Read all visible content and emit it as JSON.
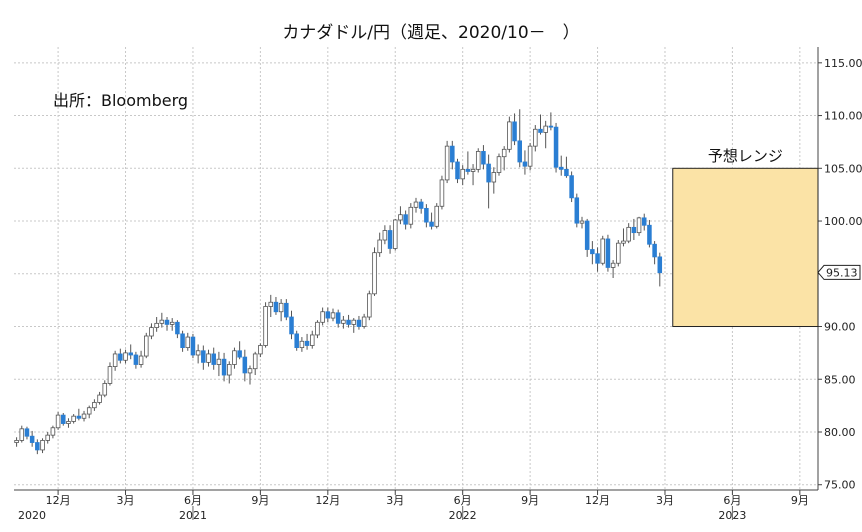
{
  "chart_data": {
    "type": "candlestick",
    "title": "カナダドル/円（週足、2020/10－　）",
    "source": "出所：Bloomberg",
    "y_axis": {
      "side": "right",
      "ylim": [
        74.5,
        116.5
      ],
      "ticks": [
        "115.00",
        "110.00",
        "105.00",
        "100.00",
        "95.00",
        "90.00",
        "85.00",
        "80.00",
        "75.00"
      ]
    },
    "x_axis": {
      "month_ticks": [
        {
          "label": "12月",
          "week": 8
        },
        {
          "label": "3月",
          "week": 21
        },
        {
          "label": "6月",
          "week": 34
        },
        {
          "label": "9月",
          "week": 47
        },
        {
          "label": "12月",
          "week": 60
        },
        {
          "label": "3月",
          "week": 73
        },
        {
          "label": "6月",
          "week": 86
        },
        {
          "label": "9月",
          "week": 99
        },
        {
          "label": "12月",
          "week": 112
        },
        {
          "label": "3月",
          "week": 125
        },
        {
          "label": "6月",
          "week": 138
        },
        {
          "label": "9月",
          "week": 151
        }
      ],
      "year_labels": [
        {
          "label": "2020",
          "week": 0
        },
        {
          "label": "2021",
          "week": 34
        },
        {
          "label": "2022",
          "week": 86
        },
        {
          "label": "2023",
          "week": 138
        }
      ]
    },
    "last_price": {
      "value": 95.13,
      "label": "95.13"
    },
    "forecast_range": {
      "label": "予想レンジ",
      "low": 90.0,
      "high": 105.0,
      "start_week": 127,
      "end_week": 155
    },
    "colors": {
      "up": "#ffffff",
      "down": "#2a7ed3",
      "wick": "#555555",
      "range_fill": "#fbe3a6",
      "range_border": "#222222"
    },
    "candles": [
      [
        79.0,
        79.5,
        78.6,
        79.2
      ],
      [
        79.2,
        80.6,
        79.0,
        80.3
      ],
      [
        80.3,
        80.5,
        79.3,
        79.6
      ],
      [
        79.6,
        80.1,
        78.6,
        79.0
      ],
      [
        79.0,
        79.3,
        77.9,
        78.3
      ],
      [
        78.3,
        79.4,
        78.0,
        79.2
      ],
      [
        79.2,
        80.0,
        78.9,
        79.7
      ],
      [
        79.7,
        80.6,
        79.4,
        80.4
      ],
      [
        80.4,
        81.9,
        80.2,
        81.6
      ],
      [
        81.6,
        81.8,
        80.6,
        80.8
      ],
      [
        80.8,
        81.3,
        80.4,
        81.0
      ],
      [
        81.0,
        81.7,
        80.8,
        81.5
      ],
      [
        81.5,
        82.2,
        81.1,
        81.3
      ],
      [
        81.3,
        82.0,
        81.0,
        81.7
      ],
      [
        81.7,
        82.5,
        81.3,
        82.3
      ],
      [
        82.3,
        83.1,
        82.0,
        82.8
      ],
      [
        82.8,
        83.8,
        82.6,
        83.5
      ],
      [
        83.5,
        84.9,
        83.3,
        84.6
      ],
      [
        84.6,
        86.6,
        84.4,
        86.2
      ],
      [
        86.2,
        87.7,
        85.8,
        87.4
      ],
      [
        87.4,
        87.9,
        86.5,
        86.8
      ],
      [
        86.8,
        87.8,
        86.5,
        87.5
      ],
      [
        87.5,
        88.3,
        86.9,
        87.3
      ],
      [
        87.3,
        87.6,
        86.0,
        86.4
      ],
      [
        86.4,
        87.7,
        86.1,
        87.2
      ],
      [
        87.2,
        89.4,
        87.0,
        89.1
      ],
      [
        89.1,
        90.3,
        88.8,
        89.9
      ],
      [
        89.9,
        90.9,
        89.5,
        90.3
      ],
      [
        90.3,
        91.3,
        89.9,
        90.6
      ],
      [
        90.6,
        90.9,
        89.6,
        90.2
      ],
      [
        90.2,
        90.8,
        89.6,
        90.4
      ],
      [
        90.4,
        90.6,
        88.9,
        89.3
      ],
      [
        89.3,
        89.6,
        87.6,
        88.0
      ],
      [
        88.0,
        89.4,
        87.7,
        89.0
      ],
      [
        89.0,
        89.3,
        87.0,
        87.3
      ],
      [
        87.3,
        88.3,
        86.5,
        87.7
      ],
      [
        87.7,
        88.2,
        85.9,
        86.6
      ],
      [
        86.6,
        87.8,
        86.2,
        87.4
      ],
      [
        87.4,
        88.0,
        85.9,
        86.4
      ],
      [
        86.4,
        87.6,
        85.3,
        86.9
      ],
      [
        86.9,
        87.5,
        84.8,
        85.4
      ],
      [
        85.4,
        86.7,
        84.6,
        86.4
      ],
      [
        86.4,
        88.0,
        86.0,
        87.7
      ],
      [
        87.7,
        88.6,
        86.9,
        87.1
      ],
      [
        87.1,
        87.8,
        84.8,
        85.6
      ],
      [
        85.6,
        86.3,
        84.5,
        86.0
      ],
      [
        86.0,
        87.6,
        85.4,
        87.4
      ],
      [
        87.4,
        88.4,
        87.1,
        88.2
      ],
      [
        88.2,
        92.3,
        88.0,
        91.9
      ],
      [
        91.9,
        93.0,
        90.9,
        92.3
      ],
      [
        92.3,
        92.8,
        91.1,
        91.4
      ],
      [
        91.4,
        92.6,
        90.5,
        92.2
      ],
      [
        92.2,
        92.6,
        90.6,
        90.9
      ],
      [
        90.9,
        91.5,
        88.8,
        89.3
      ],
      [
        89.3,
        89.6,
        87.7,
        88.0
      ],
      [
        88.0,
        89.0,
        87.6,
        88.6
      ],
      [
        88.6,
        89.3,
        87.8,
        88.2
      ],
      [
        88.2,
        89.6,
        87.9,
        89.2
      ],
      [
        89.2,
        90.6,
        88.9,
        90.4
      ],
      [
        90.4,
        91.8,
        90.1,
        91.4
      ],
      [
        91.4,
        91.8,
        90.4,
        90.8
      ],
      [
        90.8,
        91.7,
        90.5,
        91.3
      ],
      [
        91.3,
        91.6,
        89.9,
        90.3
      ],
      [
        90.3,
        91.0,
        89.8,
        90.6
      ],
      [
        90.6,
        91.1,
        89.9,
        90.2
      ],
      [
        90.2,
        90.8,
        89.4,
        90.6
      ],
      [
        90.6,
        91.0,
        89.7,
        90.0
      ],
      [
        90.0,
        91.2,
        89.8,
        90.9
      ],
      [
        90.9,
        93.4,
        90.6,
        93.1
      ],
      [
        93.1,
        97.5,
        92.9,
        97.0
      ],
      [
        97.0,
        98.9,
        96.6,
        98.2
      ],
      [
        98.2,
        99.6,
        97.8,
        99.1
      ],
      [
        99.1,
        99.6,
        96.9,
        97.4
      ],
      [
        97.4,
        100.2,
        97.2,
        100.1
      ],
      [
        100.1,
        101.4,
        99.7,
        100.6
      ],
      [
        100.6,
        101.0,
        99.2,
        99.7
      ],
      [
        99.7,
        101.7,
        99.3,
        101.3
      ],
      [
        101.3,
        102.2,
        100.8,
        101.8
      ],
      [
        101.8,
        102.1,
        100.7,
        101.2
      ],
      [
        101.2,
        101.6,
        99.4,
        99.9
      ],
      [
        99.9,
        100.8,
        99.2,
        99.5
      ],
      [
        99.5,
        101.7,
        99.3,
        101.4
      ],
      [
        101.4,
        104.3,
        101.1,
        103.9
      ],
      [
        103.9,
        107.6,
        103.6,
        107.1
      ],
      [
        107.1,
        107.6,
        104.9,
        105.6
      ],
      [
        105.6,
        105.9,
        103.6,
        104.0
      ],
      [
        104.0,
        105.3,
        103.4,
        104.9
      ],
      [
        104.9,
        106.6,
        104.4,
        104.7
      ],
      [
        104.7,
        105.4,
        103.4,
        104.9
      ],
      [
        104.9,
        106.9,
        104.6,
        106.6
      ],
      [
        106.6,
        107.2,
        104.9,
        105.4
      ],
      [
        105.4,
        106.3,
        101.2,
        103.7
      ],
      [
        103.7,
        105.1,
        102.6,
        104.6
      ],
      [
        104.6,
        106.4,
        104.3,
        106.1
      ],
      [
        106.1,
        107.1,
        104.8,
        106.8
      ],
      [
        106.8,
        109.9,
        106.5,
        109.4
      ],
      [
        109.4,
        110.2,
        107.2,
        107.6
      ],
      [
        107.6,
        110.6,
        105.1,
        105.6
      ],
      [
        105.6,
        106.7,
        104.4,
        105.2
      ],
      [
        105.2,
        107.4,
        104.8,
        107.1
      ],
      [
        107.1,
        109.1,
        106.6,
        108.7
      ],
      [
        108.7,
        110.1,
        108.2,
        108.4
      ],
      [
        108.4,
        109.5,
        106.9,
        109.0
      ],
      [
        109.0,
        110.3,
        108.6,
        108.9
      ],
      [
        108.9,
        109.3,
        104.6,
        105.1
      ],
      [
        105.1,
        106.2,
        104.3,
        104.9
      ],
      [
        104.9,
        106.1,
        104.1,
        104.3
      ],
      [
        104.3,
        104.7,
        101.8,
        102.2
      ],
      [
        102.2,
        102.6,
        99.4,
        99.8
      ],
      [
        99.8,
        100.4,
        99.3,
        100.0
      ],
      [
        100.0,
        100.2,
        96.6,
        97.3
      ],
      [
        97.3,
        98.1,
        95.9,
        96.9
      ],
      [
        96.9,
        97.5,
        95.2,
        96.0
      ],
      [
        96.0,
        98.6,
        95.8,
        98.3
      ],
      [
        98.3,
        98.7,
        95.2,
        95.6
      ],
      [
        95.6,
        96.3,
        94.6,
        96.0
      ],
      [
        96.0,
        98.2,
        95.7,
        97.9
      ],
      [
        97.9,
        99.3,
        97.6,
        98.1
      ],
      [
        98.1,
        99.8,
        97.9,
        99.4
      ],
      [
        99.4,
        100.2,
        98.2,
        98.9
      ],
      [
        98.9,
        100.4,
        98.6,
        100.3
      ],
      [
        100.3,
        100.7,
        99.1,
        99.6
      ],
      [
        99.6,
        100.1,
        97.5,
        97.8
      ],
      [
        97.8,
        98.1,
        95.9,
        96.6
      ],
      [
        96.6,
        97.0,
        93.8,
        95.1
      ]
    ]
  }
}
